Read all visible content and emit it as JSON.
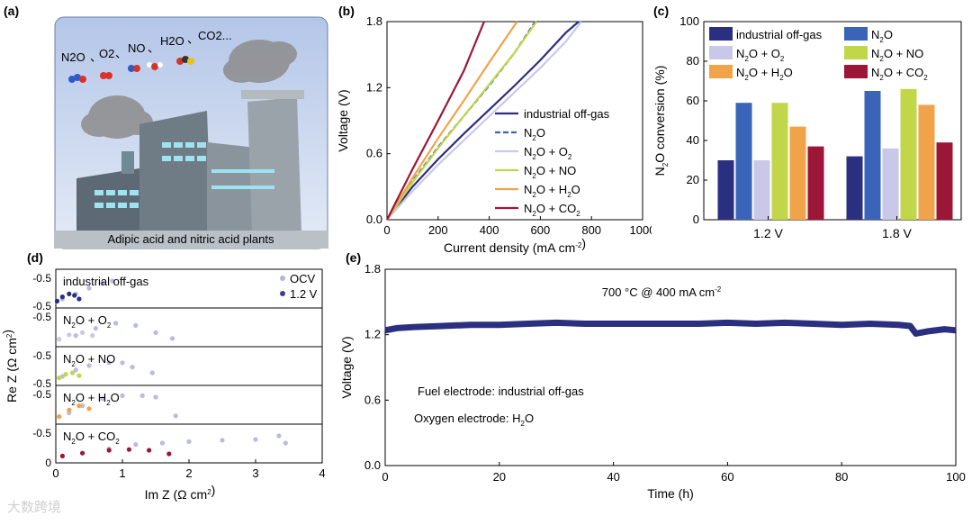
{
  "panel_labels": {
    "a": "(a)",
    "b": "(b)",
    "c": "(c)",
    "d": "(d)",
    "e": "(e)"
  },
  "colors": {
    "offgas": "#2b2f7f",
    "n2o": "#3a64b8",
    "o2": "#c9c8e8",
    "no": "#c2d64a",
    "h2o": "#f1a34a",
    "co2": "#9c1637",
    "ocv": "#b3b3e0",
    "v12": "#3a3e96",
    "illus_bg": "#b7c7e6"
  },
  "illustration": {
    "caption": "Adipic acid and nitric acid plants",
    "gas_labels": [
      "N2O",
      "O2",
      "NO",
      "H2O",
      "CO2..."
    ],
    "separator": "、"
  },
  "chart_data": [
    {
      "id": "b",
      "type": "line",
      "title": "",
      "xlabel": "Current density (mA cm-2)",
      "ylabel": "Voltage (V)",
      "xlim": [
        0,
        1000
      ],
      "ylim": [
        0,
        1.8
      ],
      "xticks": [
        0,
        200,
        400,
        600,
        800,
        1000
      ],
      "yticks": [
        0.0,
        0.6,
        1.2,
        1.8
      ],
      "ytick_labels": [
        "0.0",
        "0.6",
        "1.2",
        "1.8"
      ],
      "legend": [
        "industrial off-gas",
        "N2O",
        "N2O + O2",
        "N2O + NO",
        "N2O + H2O",
        "N2O + CO2"
      ],
      "legend_position": "bottom-right",
      "series": [
        {
          "name": "industrial off-gas",
          "color_key": "offgas",
          "dash": false,
          "x": [
            0,
            100,
            200,
            300,
            400,
            500,
            600,
            700,
            750
          ],
          "y": [
            0,
            0.3,
            0.55,
            0.78,
            1.0,
            1.22,
            1.45,
            1.7,
            1.8
          ]
        },
        {
          "name": "N2O",
          "color_key": "n2o",
          "dash": true,
          "x": [
            0,
            100,
            200,
            300,
            400,
            500,
            580
          ],
          "y": [
            0,
            0.35,
            0.66,
            0.94,
            1.22,
            1.52,
            1.8
          ]
        },
        {
          "name": "N2O + O2",
          "color_key": "o2",
          "dash": false,
          "x": [
            0,
            100,
            200,
            300,
            400,
            500,
            600,
            700,
            760
          ],
          "y": [
            0,
            0.26,
            0.5,
            0.72,
            0.94,
            1.16,
            1.38,
            1.62,
            1.8
          ]
        },
        {
          "name": "N2O + NO",
          "color_key": "no",
          "dash": false,
          "x": [
            0,
            100,
            200,
            300,
            400,
            500,
            585
          ],
          "y": [
            0,
            0.34,
            0.65,
            0.94,
            1.23,
            1.52,
            1.8
          ]
        },
        {
          "name": "N2O + H2O",
          "color_key": "h2o",
          "dash": false,
          "x": [
            0,
            100,
            200,
            300,
            400,
            500,
            510
          ],
          "y": [
            0,
            0.38,
            0.74,
            1.08,
            1.43,
            1.77,
            1.8
          ]
        },
        {
          "name": "N2O + CO2",
          "color_key": "co2",
          "dash": false,
          "x": [
            0,
            100,
            200,
            300,
            380
          ],
          "y": [
            0,
            0.46,
            0.9,
            1.35,
            1.8
          ]
        }
      ]
    },
    {
      "id": "c",
      "type": "bar",
      "xlabel": "",
      "ylabel": "N2O conversion (%)",
      "ylim": [
        0,
        100
      ],
      "yticks": [
        0,
        20,
        40,
        60,
        80,
        100
      ],
      "categories": [
        "1.2 V",
        "1.8 V"
      ],
      "legend_position": "top",
      "series": [
        {
          "name": "industrial off-gas",
          "color_key": "offgas",
          "values": [
            30,
            32
          ]
        },
        {
          "name": "N2O",
          "color_key": "n2o",
          "values": [
            59,
            65
          ]
        },
        {
          "name": "N2O + O2",
          "color_key": "o2",
          "values": [
            30,
            36
          ]
        },
        {
          "name": "N2O + NO",
          "color_key": "no",
          "values": [
            59,
            66
          ]
        },
        {
          "name": "N2O + H2O",
          "color_key": "h2o",
          "values": [
            47,
            58
          ]
        },
        {
          "name": "N2O + CO2",
          "color_key": "co2",
          "values": [
            37,
            39
          ]
        }
      ]
    },
    {
      "id": "d",
      "type": "scatter",
      "xlabel": "Im Z (Ω cm2)",
      "ylabel": "Re Z (Ω cm2)",
      "xlim": [
        0,
        4
      ],
      "xticks": [
        0,
        1,
        2,
        3,
        4
      ],
      "legend": [
        "OCV",
        "1.2 V"
      ],
      "legend_position": "top-right",
      "strips": [
        {
          "label": "industrial off-gas",
          "ticks": [
            "-0.5",
            "-0.5"
          ],
          "ocv": [
            [
              0.1,
              0.05
            ],
            [
              0.3,
              0.12
            ],
            [
              0.5,
              0.2
            ],
            [
              0.7,
              0.27
            ],
            [
              0.85,
              0.3
            ]
          ],
          "v12": [
            [
              0.02,
              0.02
            ],
            [
              0.1,
              0.08
            ],
            [
              0.2,
              0.12
            ],
            [
              0.28,
              0.1
            ],
            [
              0.35,
              0.05
            ]
          ],
          "color_key": "offgas"
        },
        {
          "label": "N2O + O2",
          "ticks": [
            "-0.5"
          ],
          "ocv": [
            [
              0.3,
              0.08
            ],
            [
              0.6,
              0.18
            ],
            [
              0.9,
              0.25
            ],
            [
              1.2,
              0.22
            ],
            [
              1.5,
              0.12
            ],
            [
              1.75,
              0.04
            ]
          ],
          "v12": [
            [
              0.05,
              0.03
            ],
            [
              0.2,
              0.09
            ],
            [
              0.4,
              0.12
            ],
            [
              0.55,
              0.08
            ]
          ],
          "color_key": "o2"
        },
        {
          "label": "N2O + NO",
          "ticks": [
            "-0.5",
            "-0.5"
          ],
          "ocv": [
            [
              0.1,
              0.05
            ],
            [
              0.3,
              0.14
            ],
            [
              0.5,
              0.2
            ],
            [
              0.8,
              0.24
            ],
            [
              1.0,
              0.24
            ],
            [
              1.15,
              0.18
            ],
            [
              1.45,
              0.1
            ]
          ],
          "v12": [
            [
              0.05,
              0.03
            ],
            [
              0.15,
              0.08
            ],
            [
              0.25,
              0.1
            ],
            [
              0.35,
              0.06
            ]
          ],
          "color_key": "no"
        },
        {
          "label": "N2O + H2O",
          "ticks": [
            "-0.5"
          ],
          "ocv": [
            [
              0.2,
              0.08
            ],
            [
              0.4,
              0.18
            ],
            [
              0.7,
              0.28
            ],
            [
              1.0,
              0.32
            ],
            [
              1.3,
              0.32
            ],
            [
              1.5,
              0.3
            ],
            [
              1.8,
              0.04
            ]
          ],
          "v12": [
            [
              0.05,
              0.03
            ],
            [
              0.2,
              0.12
            ],
            [
              0.35,
              0.18
            ],
            [
              0.5,
              0.14
            ]
          ],
          "color_key": "h2o"
        },
        {
          "label": "N2O + CO2",
          "ticks": [
            "-0.5",
            "0"
          ],
          "ocv": [
            [
              0.8,
              0.12
            ],
            [
              1.2,
              0.18
            ],
            [
              1.6,
              0.2
            ],
            [
              2.0,
              0.22
            ],
            [
              2.5,
              0.24
            ],
            [
              3.0,
              0.25
            ],
            [
              3.35,
              0.3
            ],
            [
              3.45,
              0.2
            ]
          ],
          "v12": [
            [
              0.1,
              0.02
            ],
            [
              0.4,
              0.06
            ],
            [
              0.8,
              0.1
            ],
            [
              1.1,
              0.11
            ],
            [
              1.4,
              0.1
            ],
            [
              1.7,
              0.05
            ]
          ],
          "color_key": "co2"
        }
      ]
    },
    {
      "id": "e",
      "type": "line",
      "xlabel": "Time (h)",
      "ylabel": "Voltage (V)",
      "xlim": [
        0,
        100
      ],
      "ylim": [
        0,
        1.8
      ],
      "xticks": [
        0,
        20,
        40,
        60,
        80,
        100
      ],
      "yticks": [
        0.0,
        0.6,
        1.2,
        1.8
      ],
      "ytick_labels": [
        "0.0",
        "0.6",
        "1.2",
        "1.8"
      ],
      "annotation": "700 °C @ 400 mA cm-2",
      "notes": [
        "Fuel electrode: industrial off-gas",
        "Oxygen electrode: H2O"
      ],
      "series": [
        {
          "name": "industrial off-gas",
          "color_key": "offgas",
          "x": [
            0,
            2,
            5,
            10,
            15,
            20,
            25,
            30,
            35,
            40,
            45,
            50,
            55,
            60,
            65,
            70,
            75,
            80,
            85,
            90,
            92,
            93,
            95,
            98,
            100
          ],
          "y": [
            1.24,
            1.26,
            1.27,
            1.28,
            1.29,
            1.29,
            1.3,
            1.31,
            1.3,
            1.3,
            1.3,
            1.3,
            1.3,
            1.31,
            1.3,
            1.31,
            1.3,
            1.29,
            1.3,
            1.29,
            1.28,
            1.21,
            1.23,
            1.25,
            1.24
          ]
        }
      ]
    }
  ],
  "watermark": "大数跨境"
}
